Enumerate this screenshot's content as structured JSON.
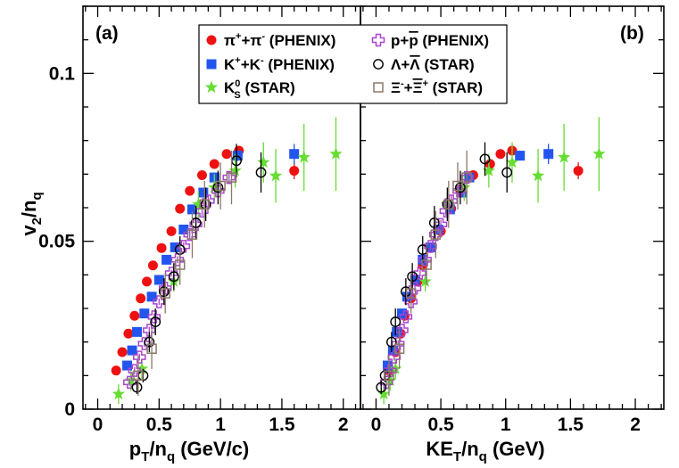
{
  "chart_data": {
    "type": "scatter",
    "y_axis": {
      "label": "v2/nq",
      "ylim": [
        0,
        0.12
      ],
      "ticks": [
        0,
        0.05,
        0.1
      ],
      "tick_labels": [
        "0",
        "0.05",
        "0.1"
      ]
    },
    "panels": [
      {
        "id": "a",
        "label": "(a)",
        "xlabel": "pT/nq (GeV/c)",
        "xlim": [
          -0.12,
          2.14
        ],
        "ticks": [
          0,
          0.5,
          1,
          1.5,
          2
        ],
        "tick_labels": [
          "0",
          "0.5",
          "1",
          "1.5",
          "2"
        ]
      },
      {
        "id": "b",
        "label": "(b)",
        "xlabel": "KET/nq (GeV)",
        "xlim": [
          -0.12,
          2.22
        ],
        "ticks": [
          0,
          0.5,
          1,
          1.5,
          2
        ],
        "tick_labels": [
          "0",
          "0.5",
          "1",
          "1.5",
          "2"
        ]
      }
    ],
    "legend": [
      {
        "name": "π⁺+π⁻ (PHENIX)",
        "marker": "circle",
        "color": "#ee1111"
      },
      {
        "name": "K⁺+K⁻ (PHENIX)",
        "marker": "square",
        "color": "#2255ee"
      },
      {
        "name": "K⁰S (STAR)",
        "marker": "star",
        "color": "#66dd33"
      },
      {
        "name": "p+p̄ (PHENIX)",
        "marker": "cross-open",
        "color": "#aa44cc"
      },
      {
        "name": "Λ+Λ̄ (STAR)",
        "marker": "circle-open",
        "color": "#000000"
      },
      {
        "name": "Ξ⁻+Ξ̄⁺ (STAR)",
        "marker": "square-open",
        "color": "#8a7868"
      }
    ],
    "series": [
      {
        "name": "pi",
        "marker": "circle",
        "color": "#ee1111",
        "a": [
          [
            0.15,
            0.0115,
            0.0005
          ],
          [
            0.2,
            0.017,
            0.0005
          ],
          [
            0.25,
            0.0225,
            0.0005
          ],
          [
            0.3,
            0.0278,
            0.0005
          ],
          [
            0.35,
            0.033,
            0.0005
          ],
          [
            0.4,
            0.038,
            0.0005
          ],
          [
            0.45,
            0.0428,
            0.0005
          ],
          [
            0.52,
            0.048,
            0.0005
          ],
          [
            0.6,
            0.053,
            0.0005
          ],
          [
            0.67,
            0.0597,
            0.0005
          ],
          [
            0.75,
            0.065,
            0.0006
          ],
          [
            0.85,
            0.0697,
            0.0006
          ],
          [
            0.95,
            0.073,
            0.0008
          ],
          [
            1.05,
            0.076,
            0.001
          ],
          [
            1.15,
            0.077,
            0.0012
          ],
          [
            1.6,
            0.071,
            0.0025
          ]
        ],
        "b": [
          [
            0.1,
            0.0115,
            0.0005
          ],
          [
            0.15,
            0.017,
            0.0005
          ],
          [
            0.19,
            0.0225,
            0.0005
          ],
          [
            0.22,
            0.0278,
            0.0005
          ],
          [
            0.27,
            0.033,
            0.0005
          ],
          [
            0.32,
            0.038,
            0.0005
          ],
          [
            0.36,
            0.0428,
            0.0005
          ],
          [
            0.42,
            0.048,
            0.0005
          ],
          [
            0.5,
            0.053,
            0.0005
          ],
          [
            0.58,
            0.0597,
            0.0005
          ],
          [
            0.65,
            0.065,
            0.0006
          ],
          [
            0.75,
            0.0697,
            0.0006
          ],
          [
            0.88,
            0.073,
            0.0008
          ],
          [
            0.96,
            0.076,
            0.001
          ],
          [
            1.05,
            0.077,
            0.0012
          ],
          [
            1.56,
            0.071,
            0.0025
          ]
        ]
      },
      {
        "name": "kaon",
        "marker": "square",
        "color": "#2255ee",
        "a": [
          [
            0.24,
            0.013,
            0.0006
          ],
          [
            0.28,
            0.0175,
            0.0006
          ],
          [
            0.32,
            0.023,
            0.0006
          ],
          [
            0.38,
            0.0285,
            0.0006
          ],
          [
            0.44,
            0.0335,
            0.0006
          ],
          [
            0.5,
            0.0385,
            0.0007
          ],
          [
            0.56,
            0.0445,
            0.0007
          ],
          [
            0.63,
            0.0482,
            0.0007
          ],
          [
            0.7,
            0.0535,
            0.0008
          ],
          [
            0.77,
            0.0595,
            0.0009
          ],
          [
            0.86,
            0.0645,
            0.001
          ],
          [
            0.95,
            0.069,
            0.0012
          ],
          [
            1.14,
            0.0755,
            0.0015
          ],
          [
            1.6,
            0.076,
            0.003
          ]
        ],
        "b": [
          [
            0.09,
            0.013,
            0.0006
          ],
          [
            0.13,
            0.0175,
            0.0006
          ],
          [
            0.16,
            0.023,
            0.0006
          ],
          [
            0.2,
            0.0285,
            0.0006
          ],
          [
            0.24,
            0.0335,
            0.0006
          ],
          [
            0.3,
            0.0385,
            0.0007
          ],
          [
            0.36,
            0.0445,
            0.0007
          ],
          [
            0.42,
            0.0482,
            0.0007
          ],
          [
            0.48,
            0.0535,
            0.0008
          ],
          [
            0.57,
            0.0595,
            0.0009
          ],
          [
            0.66,
            0.0645,
            0.001
          ],
          [
            0.72,
            0.069,
            0.0012
          ],
          [
            1.11,
            0.0755,
            0.0015
          ],
          [
            1.33,
            0.076,
            0.003
          ]
        ]
      },
      {
        "name": "k0s",
        "marker": "star",
        "color": "#66dd33",
        "a": [
          [
            0.17,
            0.0045,
            0.003
          ],
          [
            0.27,
            0.0085,
            0.003
          ],
          [
            0.36,
            0.012,
            0.003
          ],
          [
            0.62,
            0.038,
            0.003
          ],
          [
            0.82,
            0.061,
            0.004
          ],
          [
            0.95,
            0.066,
            0.004
          ],
          [
            1.12,
            0.071,
            0.005
          ],
          [
            1.35,
            0.0735,
            0.006
          ],
          [
            1.45,
            0.0695,
            0.008
          ],
          [
            1.68,
            0.075,
            0.01
          ],
          [
            1.94,
            0.076,
            0.011
          ]
        ],
        "b": [
          [
            0.06,
            0.0045,
            0.003
          ],
          [
            0.11,
            0.0085,
            0.003
          ],
          [
            0.15,
            0.012,
            0.003
          ],
          [
            0.38,
            0.038,
            0.003
          ],
          [
            0.55,
            0.061,
            0.004
          ],
          [
            0.68,
            0.066,
            0.004
          ],
          [
            0.87,
            0.071,
            0.005
          ],
          [
            1.05,
            0.0735,
            0.006
          ],
          [
            1.25,
            0.0695,
            0.008
          ],
          [
            1.45,
            0.075,
            0.01
          ],
          [
            1.72,
            0.076,
            0.011
          ]
        ]
      },
      {
        "name": "proton",
        "marker": "cross-open",
        "color": "#aa44cc",
        "a": [
          [
            0.26,
            0.008,
            0.001
          ],
          [
            0.3,
            0.0115,
            0.001
          ],
          [
            0.34,
            0.0155,
            0.001
          ],
          [
            0.38,
            0.0195,
            0.001
          ],
          [
            0.42,
            0.0235,
            0.001
          ],
          [
            0.46,
            0.0275,
            0.001
          ],
          [
            0.5,
            0.032,
            0.001
          ],
          [
            0.55,
            0.036,
            0.001
          ],
          [
            0.6,
            0.0405,
            0.001
          ],
          [
            0.65,
            0.0445,
            0.001
          ],
          [
            0.7,
            0.0485,
            0.0012
          ],
          [
            0.75,
            0.052,
            0.0012
          ],
          [
            0.8,
            0.055,
            0.0013
          ],
          [
            0.85,
            0.059,
            0.0014
          ],
          [
            0.9,
            0.062,
            0.0016
          ],
          [
            0.98,
            0.065,
            0.0018
          ],
          [
            1.07,
            0.069,
            0.002
          ]
        ],
        "b": [
          [
            0.08,
            0.008,
            0.001
          ],
          [
            0.11,
            0.0115,
            0.001
          ],
          [
            0.14,
            0.0155,
            0.001
          ],
          [
            0.17,
            0.0195,
            0.001
          ],
          [
            0.2,
            0.0235,
            0.001
          ],
          [
            0.23,
            0.0275,
            0.001
          ],
          [
            0.27,
            0.032,
            0.001
          ],
          [
            0.3,
            0.036,
            0.001
          ],
          [
            0.34,
            0.0405,
            0.001
          ],
          [
            0.38,
            0.0445,
            0.001
          ],
          [
            0.42,
            0.0485,
            0.0012
          ],
          [
            0.46,
            0.052,
            0.0012
          ],
          [
            0.5,
            0.055,
            0.0013
          ],
          [
            0.54,
            0.059,
            0.0014
          ],
          [
            0.58,
            0.062,
            0.0016
          ],
          [
            0.64,
            0.065,
            0.0018
          ],
          [
            0.7,
            0.069,
            0.002
          ]
        ]
      },
      {
        "name": "lambda",
        "marker": "circle-open",
        "color": "#000000",
        "a": [
          [
            0.32,
            0.0065,
            0.002
          ],
          [
            0.37,
            0.01,
            0.002
          ],
          [
            0.42,
            0.02,
            0.003
          ],
          [
            0.47,
            0.026,
            0.004
          ],
          [
            0.54,
            0.035,
            0.004
          ],
          [
            0.62,
            0.0395,
            0.004
          ],
          [
            0.67,
            0.0475,
            0.004
          ],
          [
            0.8,
            0.0555,
            0.005
          ],
          [
            0.88,
            0.061,
            0.005
          ],
          [
            0.98,
            0.066,
            0.005
          ],
          [
            1.13,
            0.074,
            0.005
          ],
          [
            1.33,
            0.0705,
            0.006
          ]
        ],
        "b": [
          [
            0.04,
            0.0065,
            0.002
          ],
          [
            0.07,
            0.01,
            0.002
          ],
          [
            0.12,
            0.02,
            0.003
          ],
          [
            0.15,
            0.026,
            0.004
          ],
          [
            0.23,
            0.035,
            0.004
          ],
          [
            0.28,
            0.0395,
            0.004
          ],
          [
            0.36,
            0.0475,
            0.004
          ],
          [
            0.45,
            0.0555,
            0.005
          ],
          [
            0.55,
            0.061,
            0.005
          ],
          [
            0.65,
            0.066,
            0.005
          ],
          [
            0.84,
            0.0745,
            0.005
          ],
          [
            1.01,
            0.0705,
            0.006
          ]
        ]
      },
      {
        "name": "xi",
        "marker": "square-open",
        "color": "#8a7868",
        "a": [
          [
            0.33,
            0.01,
            0.006
          ],
          [
            0.44,
            0.018,
            0.006
          ],
          [
            0.55,
            0.0345,
            0.006
          ],
          [
            0.67,
            0.043,
            0.006
          ],
          [
            0.77,
            0.052,
            0.007
          ],
          [
            0.87,
            0.061,
            0.007
          ],
          [
            1.0,
            0.0665,
            0.007
          ],
          [
            1.09,
            0.069,
            0.008
          ]
        ],
        "b": [
          [
            0.1,
            0.01,
            0.006
          ],
          [
            0.18,
            0.018,
            0.006
          ],
          [
            0.27,
            0.0345,
            0.006
          ],
          [
            0.39,
            0.043,
            0.006
          ],
          [
            0.46,
            0.052,
            0.007
          ],
          [
            0.56,
            0.061,
            0.007
          ],
          [
            0.63,
            0.0665,
            0.007
          ],
          [
            0.7,
            0.069,
            0.008
          ]
        ]
      }
    ]
  }
}
